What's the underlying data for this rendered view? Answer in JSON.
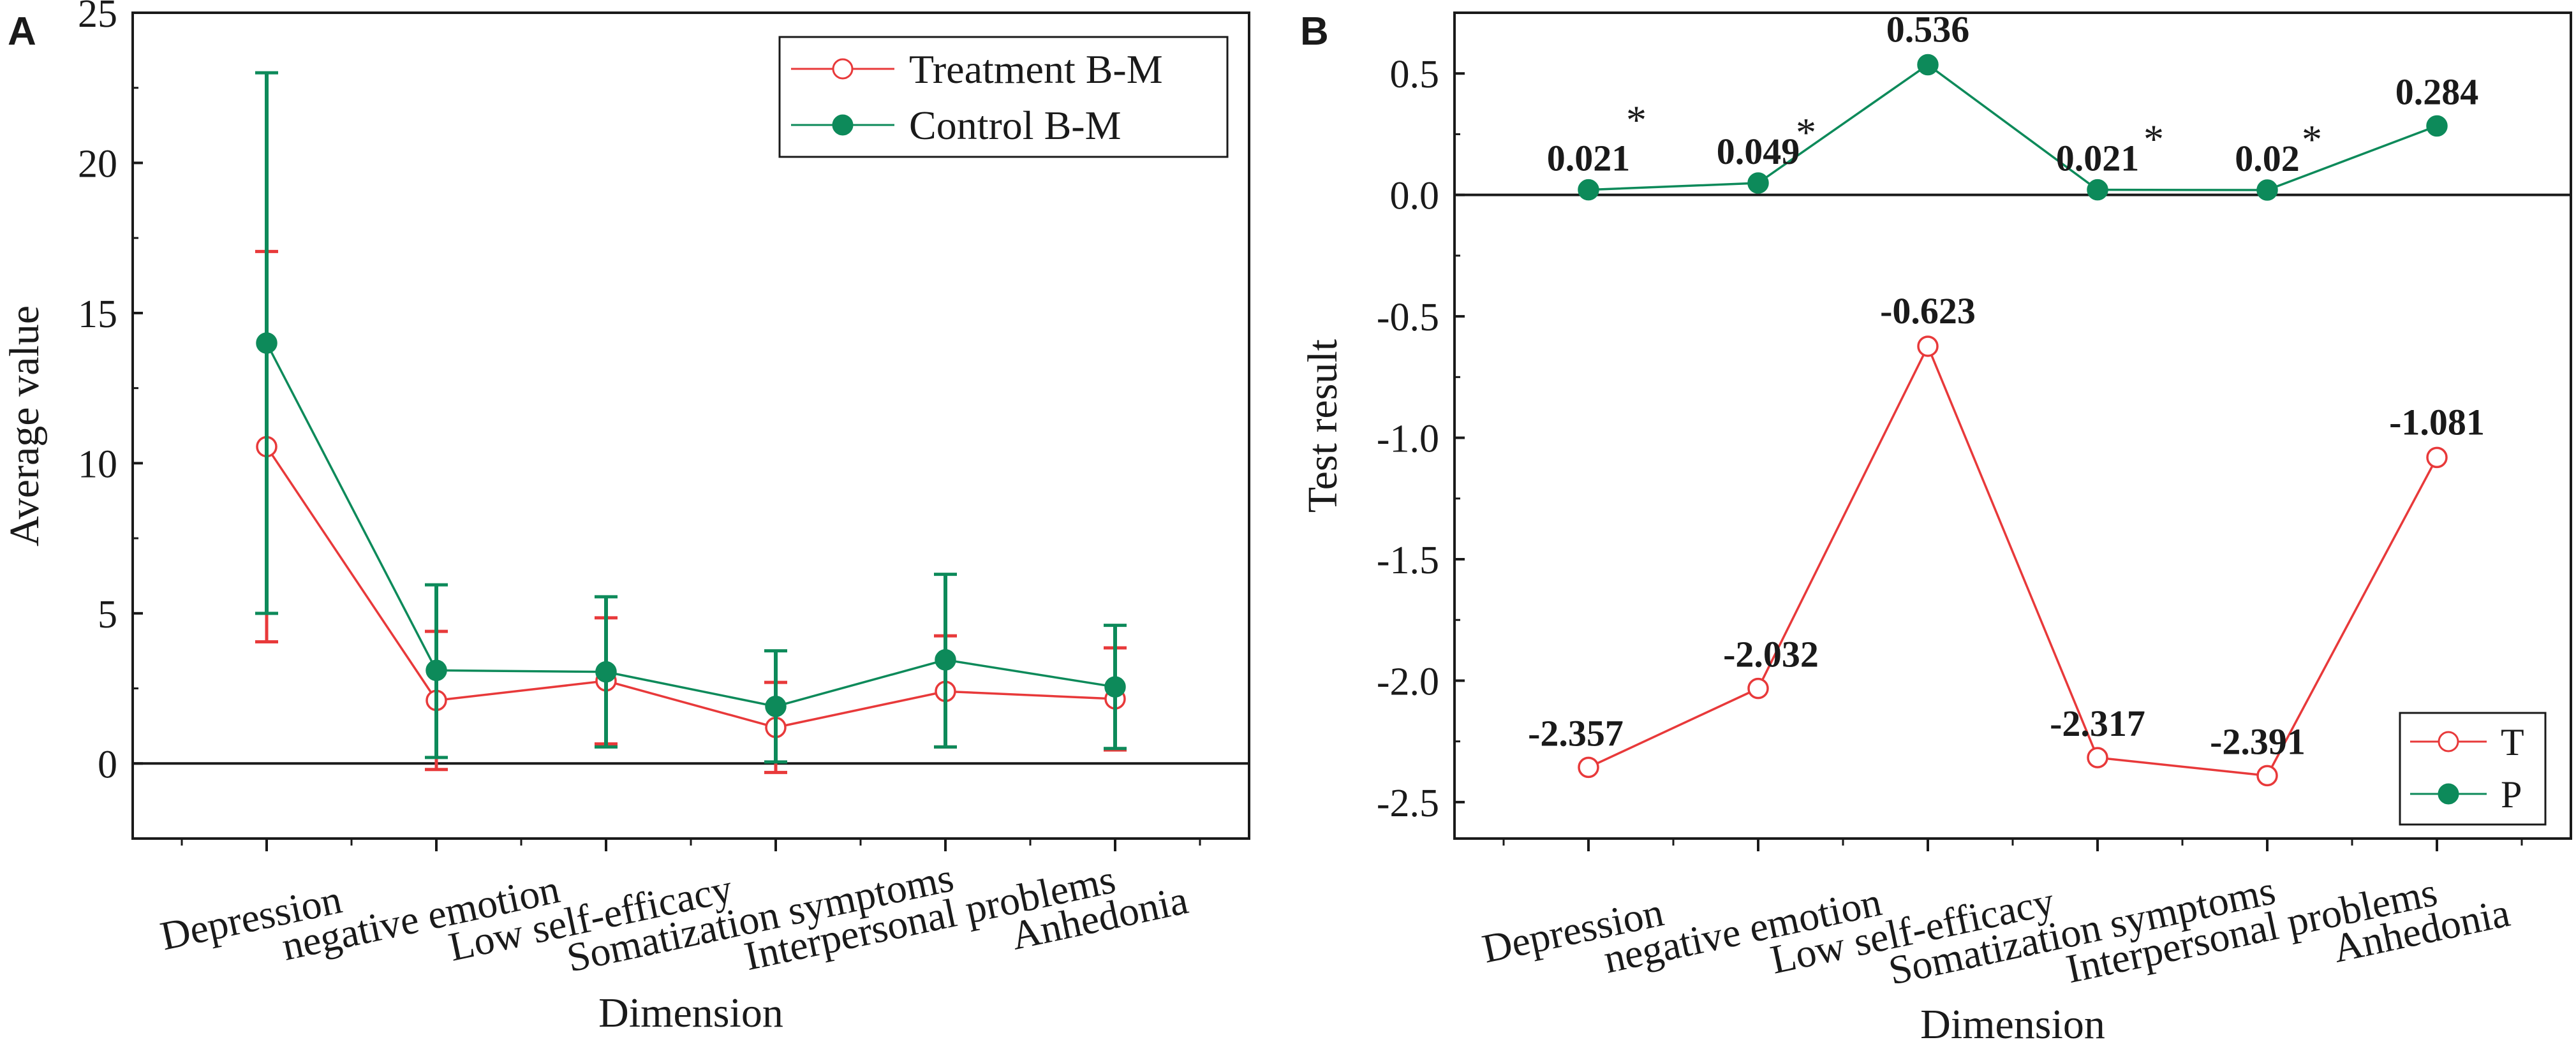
{
  "colors": {
    "treatment": "#e8393a",
    "control": "#0d8a5a",
    "axis": "#1a1a1a",
    "background": "#ffffff"
  },
  "chart_data": [
    {
      "panel": "A",
      "type": "line",
      "xlabel": "Dimension",
      "ylabel": "Average value",
      "ylim": [
        -2.5,
        25
      ],
      "yticks": [
        0,
        5,
        10,
        15,
        20,
        25
      ],
      "categories": [
        "Depression",
        "negative emotion",
        "Low self-efficacy",
        "Somatization symptoms",
        "Interpersonal problems",
        "Anhedonia"
      ],
      "legend_position": "top-right",
      "series": [
        {
          "name": "Treatment B-M",
          "marker": "open-circle",
          "values": [
            10.55,
            2.1,
            2.75,
            1.2,
            2.4,
            2.15
          ],
          "error_low": [
            4.05,
            -0.2,
            0.65,
            -0.3,
            0.55,
            0.45
          ],
          "error_high": [
            17.05,
            4.4,
            4.85,
            2.7,
            4.25,
            3.85
          ]
        },
        {
          "name": "Control B-M",
          "marker": "filled-circle",
          "values": [
            14.0,
            3.1,
            3.05,
            1.9,
            3.45,
            2.55
          ],
          "error_low": [
            5.0,
            0.2,
            0.55,
            0.05,
            0.55,
            0.5
          ],
          "error_high": [
            23.0,
            5.95,
            5.55,
            3.75,
            6.3,
            4.6
          ]
        }
      ]
    },
    {
      "panel": "B",
      "type": "line",
      "xlabel": "Dimension",
      "ylabel": "Test result",
      "ylim": [
        -2.65,
        0.75
      ],
      "yticks": [
        0.5,
        0.0,
        -0.5,
        -1.0,
        -1.5,
        -2.0,
        -2.5
      ],
      "ytick_labels": [
        "0.5",
        "0.0",
        "-0.5",
        "-1.0",
        "-1.5",
        "-2.0",
        "-2.5"
      ],
      "categories": [
        "Depression",
        "negative emotion",
        "Low self-efficacy",
        "Somatization symptoms",
        "Interpersonal problems",
        "Anhedonia"
      ],
      "legend_position": "bottom-right",
      "series": [
        {
          "name": "T",
          "marker": "open-circle",
          "values": [
            -2.357,
            -2.032,
            -0.623,
            -2.317,
            -2.391,
            -1.081
          ],
          "labels": [
            "-2.357",
            "-2.032",
            "-0.623",
            "-2.317",
            "-2.391",
            "-1.081"
          ]
        },
        {
          "name": "P",
          "marker": "filled-circle",
          "values": [
            0.021,
            0.049,
            0.536,
            0.021,
            0.02,
            0.284
          ],
          "labels": [
            "0.021",
            "0.049",
            "0.536",
            "0.021",
            "0.02",
            "0.284"
          ],
          "significance": [
            "*",
            "*",
            "",
            "*",
            "*",
            ""
          ]
        }
      ]
    }
  ],
  "panels": {
    "a_label": "A",
    "b_label": "B"
  }
}
